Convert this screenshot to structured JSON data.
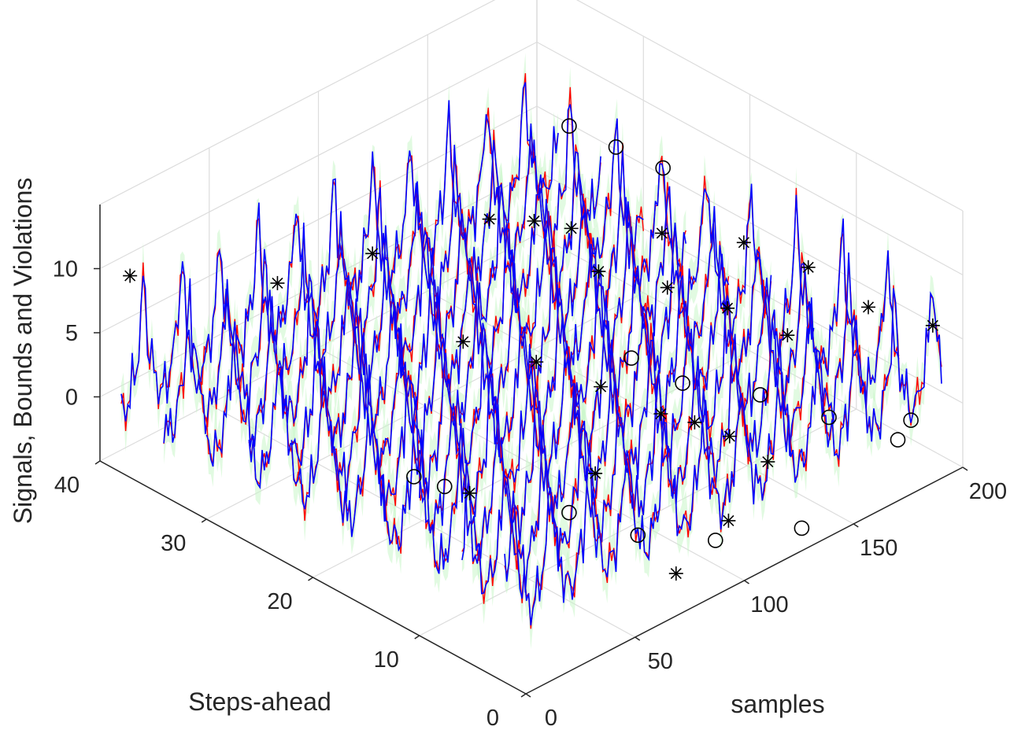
{
  "chart_data": {
    "type": "line3d",
    "title": "",
    "xlabel": "samples",
    "ylabel": "Steps-ahead",
    "zlabel": "Signals, Bounds and Violations",
    "xlim": [
      0,
      200
    ],
    "ylim": [
      0,
      40
    ],
    "zlim": [
      -5,
      15
    ],
    "xticks": [
      0,
      50,
      100,
      150,
      200
    ],
    "yticks": [
      0,
      10,
      20,
      30,
      40
    ],
    "zticks": [
      0,
      5,
      10
    ],
    "step_rows": [
      2,
      6,
      10,
      14,
      18,
      22,
      26,
      30,
      34,
      38
    ],
    "sample_range": [
      0,
      200
    ],
    "grid": true,
    "legend": "none",
    "series": [
      {
        "name": "Actual signal",
        "color": "#ff0000"
      },
      {
        "name": "Forecast",
        "color": "#0000ff"
      },
      {
        "name": "Confidence bounds",
        "color": "#c8f5c8"
      },
      {
        "name": "Violation (above bound)",
        "marker": "*",
        "color": "#000000"
      },
      {
        "name": "Violation (below bound)",
        "marker": "o",
        "color": "#000000"
      }
    ],
    "violations_star": [
      {
        "step": 38,
        "sample": 4,
        "value": 10
      },
      {
        "step": 34,
        "sample": 52,
        "value": 7
      },
      {
        "step": 30,
        "sample": 76,
        "value": 9
      },
      {
        "step": 26,
        "sample": 110,
        "value": 10.5
      },
      {
        "step": 22,
        "sample": 128,
        "value": 10
      },
      {
        "step": 18,
        "sample": 150,
        "value": 9.5
      },
      {
        "step": 14,
        "sample": 168,
        "value": 9
      },
      {
        "step": 10,
        "sample": 178,
        "value": 8
      },
      {
        "step": 6,
        "sample": 186,
        "value": 6
      },
      {
        "step": 2,
        "sample": 196,
        "value": 5.5
      },
      {
        "step": 30,
        "sample": 150,
        "value": 5
      },
      {
        "step": 26,
        "sample": 160,
        "value": 2
      },
      {
        "step": 22,
        "sample": 172,
        "value": 1.5
      },
      {
        "step": 18,
        "sample": 180,
        "value": 1
      },
      {
        "step": 14,
        "sample": 188,
        "value": 0
      },
      {
        "step": 22,
        "sample": 112,
        "value": 1
      },
      {
        "step": 18,
        "sample": 122,
        "value": 0
      },
      {
        "step": 14,
        "sample": 130,
        "value": -1
      },
      {
        "step": 10,
        "sample": 142,
        "value": -2
      },
      {
        "step": 26,
        "sample": 98,
        "value": 2
      },
      {
        "step": 14,
        "sample": 100,
        "value": -3
      },
      {
        "step": 10,
        "sample": 126,
        "value": 0.5
      },
      {
        "step": 6,
        "sample": 140,
        "value": -2
      },
      {
        "step": 6,
        "sample": 122,
        "value": -5
      },
      {
        "step": 18,
        "sample": 62,
        "value": -3
      },
      {
        "step": 6,
        "sample": 98,
        "value": -7
      }
    ],
    "violations_circle": [
      {
        "step": 30,
        "sample": 166,
        "value": 11
      },
      {
        "step": 26,
        "sample": 168,
        "value": 11
      },
      {
        "step": 22,
        "sample": 170,
        "value": 11
      },
      {
        "step": 18,
        "sample": 136,
        "value": 1
      },
      {
        "step": 14,
        "sample": 140,
        "value": 0.5
      },
      {
        "step": 10,
        "sample": 156,
        "value": 0
      },
      {
        "step": 6,
        "sample": 168,
        "value": -1
      },
      {
        "step": 2,
        "sample": 180,
        "value": -2
      },
      {
        "step": 2,
        "sample": 186,
        "value": -1
      },
      {
        "step": 22,
        "sample": 56,
        "value": -3
      },
      {
        "step": 22,
        "sample": 70,
        "value": -5
      },
      {
        "step": 14,
        "sample": 88,
        "value": -5
      },
      {
        "step": 10,
        "sample": 100,
        "value": -6
      },
      {
        "step": 6,
        "sample": 116,
        "value": -6
      },
      {
        "step": 2,
        "sample": 136,
        "value": -5
      }
    ]
  }
}
